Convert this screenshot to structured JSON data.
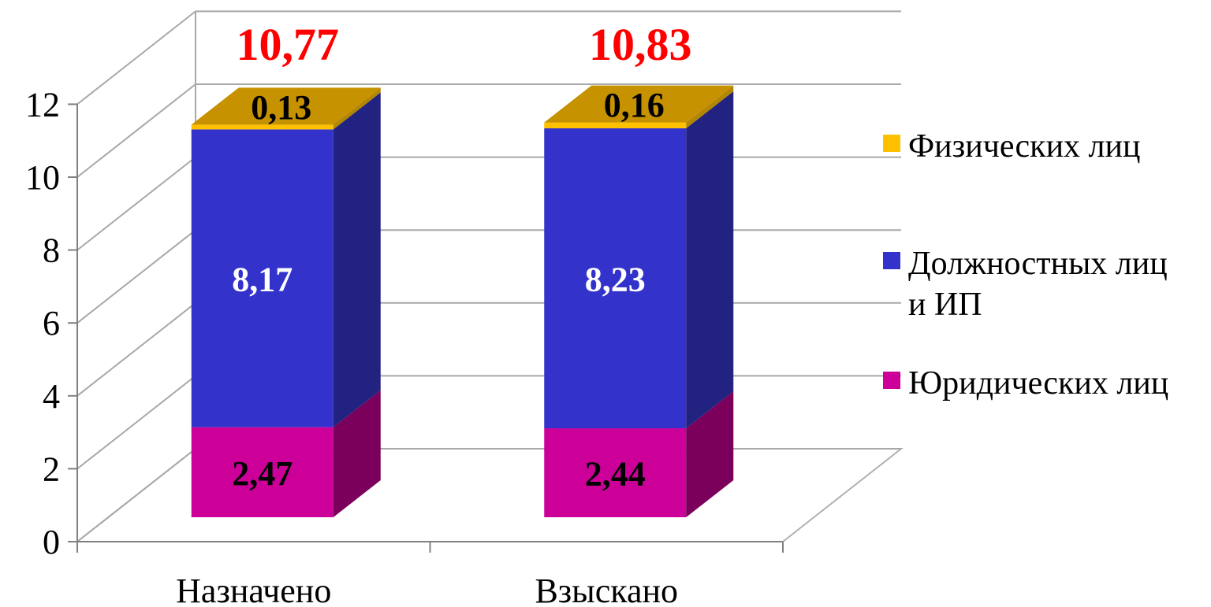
{
  "chart_data": {
    "type": "bar",
    "stacked": true,
    "style": "3d",
    "categories": [
      "Назначено",
      "Взыскано"
    ],
    "series": [
      {
        "name": "Юридических лиц",
        "values": [
          2.47,
          2.44
        ],
        "value_labels": [
          "2,47",
          "2,44"
        ],
        "color": "#CC0099",
        "side_color": "#7A005C",
        "label_color": "#000000"
      },
      {
        "name": "Должностных лиц и ИП",
        "values": [
          8.17,
          8.23
        ],
        "value_labels": [
          "8,17",
          "8,23"
        ],
        "color": "#3333CC",
        "side_color": "#222280",
        "label_color": "#FFFFFF"
      },
      {
        "name": "Физических лиц",
        "values": [
          0.13,
          0.16
        ],
        "value_labels": [
          "0,13",
          "0,16"
        ],
        "color": "#FFC000",
        "side_color": "#B38600",
        "top_color": "#C69200",
        "label_color": "#000000"
      }
    ],
    "totals": [
      "10,77",
      "10,83"
    ],
    "totals_color": "#FF0000",
    "ylim": [
      0,
      12
    ],
    "yticks": [
      "0",
      "2",
      "4",
      "6",
      "8",
      "10",
      "12"
    ],
    "grid": true,
    "legend_position": "right",
    "legend_order": [
      "Физических лиц",
      "Должностных лиц и ИП",
      "Юридических лиц"
    ],
    "legend_lines": {
      "Физических лиц": [
        "Физических лиц"
      ],
      "Должностных лиц и ИП": [
        "Должностных лиц",
        "и ИП"
      ],
      "Юридических лиц": [
        "Юридических лиц"
      ]
    },
    "title": "",
    "xlabel": "",
    "ylabel": ""
  }
}
